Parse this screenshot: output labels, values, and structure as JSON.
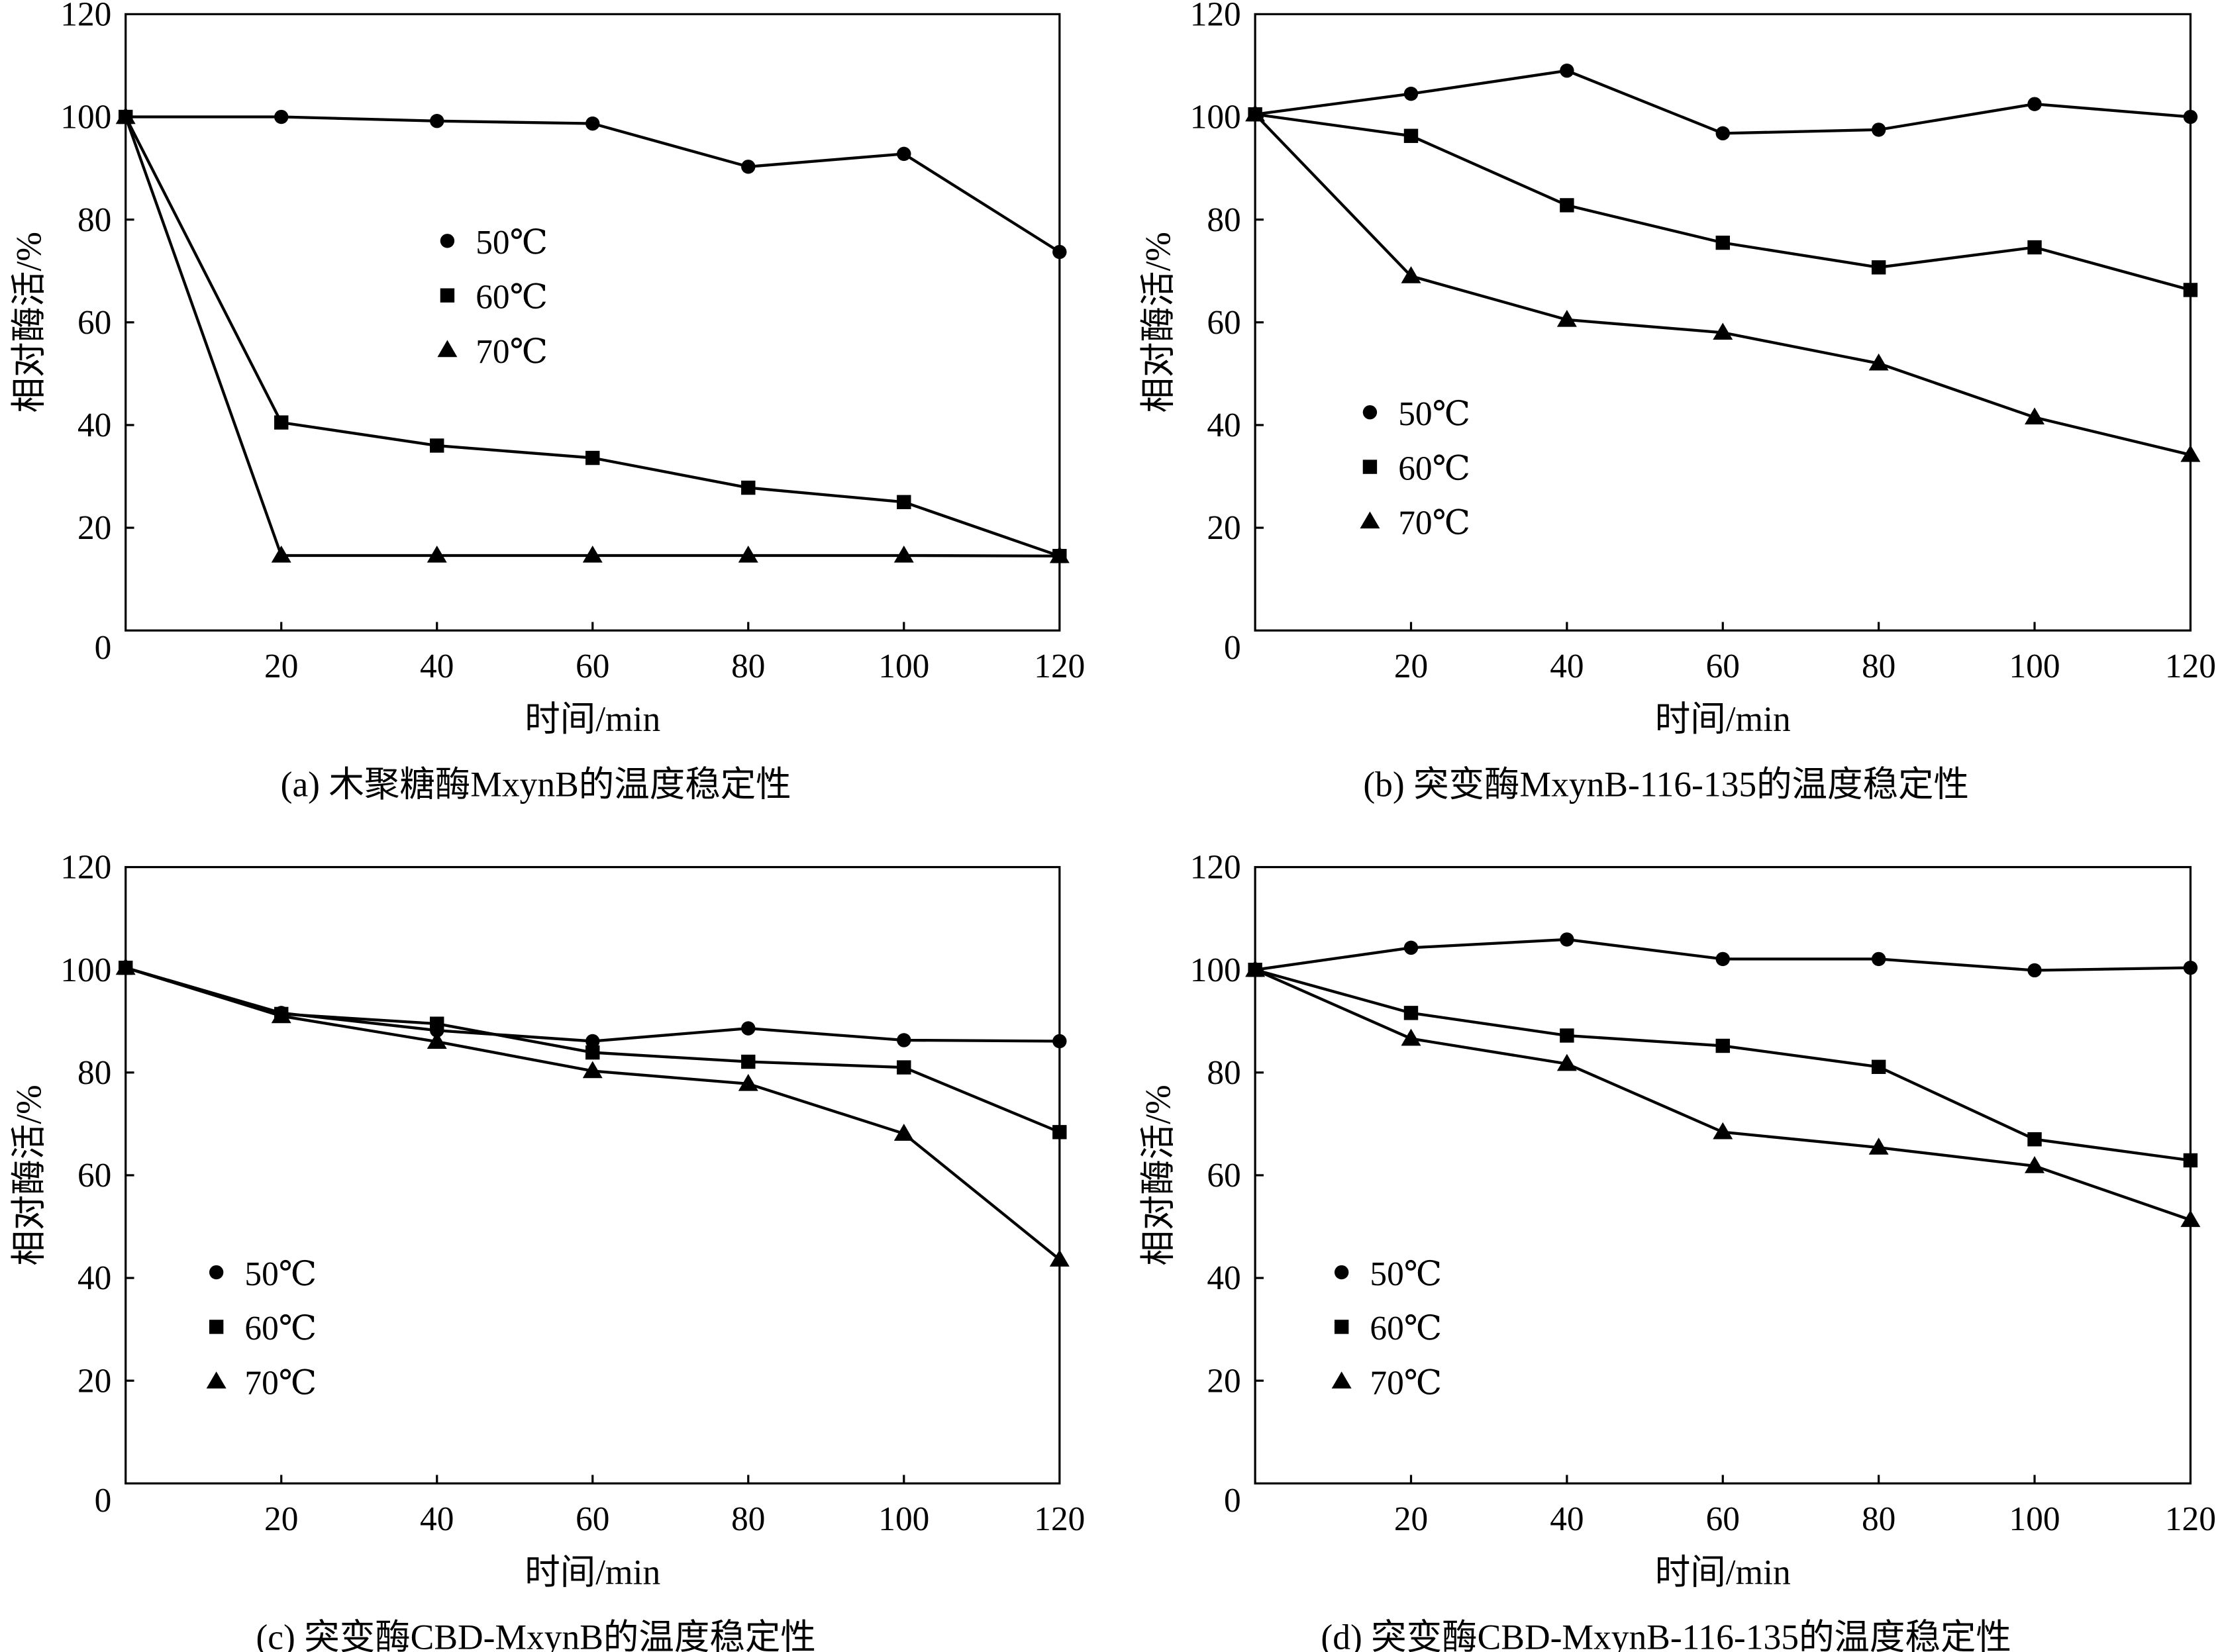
{
  "chart_data": [
    {
      "type": "line",
      "caption": "(a)  木聚糖酶MxynB的温度稳定性",
      "xlabel": "时间/min",
      "ylabel": "相对酶活/%",
      "xlim": [
        0,
        120
      ],
      "ylim": [
        0,
        120
      ],
      "xticks": [
        20,
        40,
        60,
        80,
        100,
        120
      ],
      "yticks": [
        0,
        20,
        40,
        60,
        80,
        100,
        120
      ],
      "grid": false,
      "legend_position": "center-left",
      "x": [
        0,
        20,
        40,
        60,
        80,
        100,
        120
      ],
      "series": [
        {
          "name": "50℃",
          "marker": "circle",
          "values": [
            100,
            100,
            99.2,
            98.7,
            90.3,
            92.8,
            73.7
          ]
        },
        {
          "name": "60℃",
          "marker": "square",
          "values": [
            100,
            40.5,
            36,
            33.6,
            27.8,
            25,
            14.5
          ]
        },
        {
          "name": "70℃",
          "marker": "triangle",
          "values": [
            100,
            14.6,
            14.6,
            14.6,
            14.6,
            14.6,
            14.5
          ]
        }
      ]
    },
    {
      "type": "line",
      "caption": "(b) 突变酶MxynB-116-135的温度稳定性",
      "xlabel": "时间/min",
      "ylabel": "相对酶活/%",
      "xlim": [
        0,
        120
      ],
      "ylim": [
        0,
        120
      ],
      "xticks": [
        20,
        40,
        60,
        80,
        100,
        120
      ],
      "yticks": [
        0,
        20,
        40,
        60,
        80,
        100,
        120
      ],
      "grid": false,
      "legend_position": "lower-left",
      "x": [
        0,
        20,
        40,
        60,
        80,
        100,
        120
      ],
      "series": [
        {
          "name": "50℃",
          "marker": "circle",
          "values": [
            100.5,
            104.5,
            109,
            96.8,
            97.5,
            102.5,
            100
          ]
        },
        {
          "name": "60℃",
          "marker": "square",
          "values": [
            100.5,
            96.3,
            82.8,
            75.5,
            70.7,
            74.6,
            66.3
          ]
        },
        {
          "name": "70℃",
          "marker": "triangle",
          "values": [
            100.5,
            69,
            60.5,
            58,
            52,
            41.5,
            34.2
          ]
        }
      ]
    },
    {
      "type": "line",
      "caption": "(c) 突变酶CBD-MxynB的温度稳定性",
      "xlabel": "时间/min",
      "ylabel": "相对酶活/%",
      "xlim": [
        0,
        120
      ],
      "ylim": [
        0,
        120
      ],
      "xticks": [
        20,
        40,
        60,
        80,
        100,
        120
      ],
      "yticks": [
        0,
        20,
        40,
        60,
        80,
        100,
        120
      ],
      "grid": false,
      "legend_position": "lower-left",
      "x": [
        0,
        20,
        40,
        60,
        80,
        100,
        120
      ],
      "series": [
        {
          "name": "50℃",
          "marker": "circle",
          "values": [
            100.4,
            91.6,
            88.2,
            86.1,
            88.6,
            86.3,
            86.1
          ]
        },
        {
          "name": "60℃",
          "marker": "square",
          "values": [
            100.4,
            91.4,
            89.5,
            83.9,
            82.1,
            81,
            68.4
          ]
        },
        {
          "name": "70℃",
          "marker": "triangle",
          "values": [
            100.4,
            91,
            86,
            80.3,
            77.8,
            68.1,
            43.6
          ]
        }
      ]
    },
    {
      "type": "line",
      "caption": "(d) 突变酶CBD-MxynB-116-135的温度稳定性",
      "xlabel": "时间/min",
      "ylabel": "相对酶活/%",
      "xlim": [
        0,
        120
      ],
      "ylim": [
        0,
        120
      ],
      "xticks": [
        20,
        40,
        60,
        80,
        100,
        120
      ],
      "yticks": [
        0,
        20,
        40,
        60,
        80,
        100,
        120
      ],
      "grid": false,
      "legend_position": "lower-left",
      "x": [
        0,
        20,
        40,
        60,
        80,
        100,
        120
      ],
      "series": [
        {
          "name": "50℃",
          "marker": "circle",
          "values": [
            100,
            104.3,
            105.9,
            102.1,
            102.1,
            99.9,
            100.4
          ]
        },
        {
          "name": "60℃",
          "marker": "square",
          "values": [
            100,
            91.6,
            87.2,
            85.2,
            81.1,
            67,
            62.9
          ]
        },
        {
          "name": "70℃",
          "marker": "triangle",
          "values": [
            100,
            86.6,
            81.7,
            68.4,
            65.4,
            61.8,
            51.3
          ]
        }
      ]
    }
  ]
}
